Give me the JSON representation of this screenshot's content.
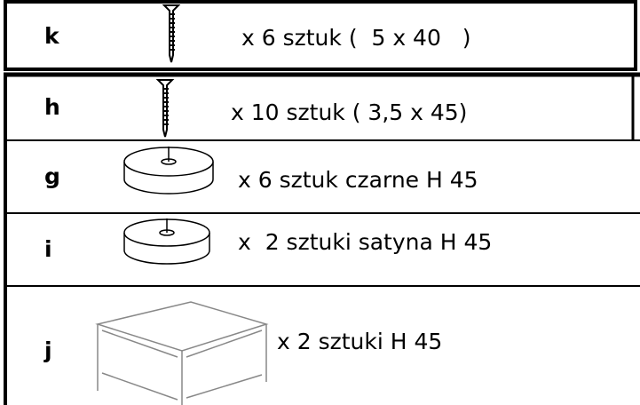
{
  "rows": [
    {
      "letter": "k",
      "text": "x 6 sztuk (  5 x 40   )"
    },
    {
      "letter": "h",
      "text": "x 10 sztuk ( 3,5 x 45)"
    },
    {
      "letter": "g",
      "text": "x 6 sztuk czarne H 45"
    },
    {
      "letter": "i",
      "text": "x  2 sztuki satyna H 45"
    },
    {
      "letter": "j",
      "text": "x 2 sztuki H 45"
    }
  ]
}
